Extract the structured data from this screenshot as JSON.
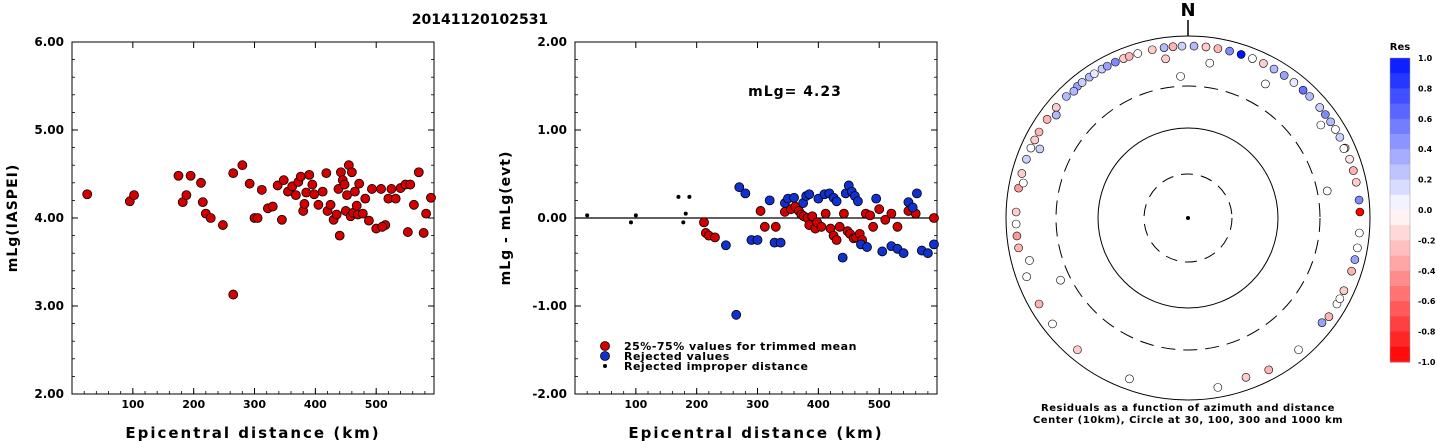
{
  "title": "20141120102531",
  "colors": {
    "trimmed": "#d40000",
    "rejected": "#1030d0",
    "improper": "#000000"
  },
  "chart_data": [
    {
      "type": "scatter",
      "xlabel": "Epicentral distance (km)",
      "ylabel": "mLg(IASPEI)",
      "xlim": [
        0,
        595
      ],
      "ylim": [
        2.0,
        6.0
      ],
      "xticks": [
        "100",
        "200",
        "300",
        "400",
        "500"
      ],
      "xtick_values": [
        100,
        200,
        300,
        400,
        500
      ],
      "yticks": [
        "2.00",
        "3.00",
        "4.00",
        "5.00",
        "6.00"
      ],
      "ytick_values": [
        2,
        3,
        4,
        5,
        6
      ],
      "series": [
        {
          "points": [
            [
              25,
              4.27
            ],
            [
              95,
              4.19
            ],
            [
              102,
              4.26
            ],
            [
              175,
              4.48
            ],
            [
              182,
              4.18
            ],
            [
              188,
              4.26
            ],
            [
              195,
              4.48
            ],
            [
              212,
              4.4
            ],
            [
              215,
              4.18
            ],
            [
              220,
              4.05
            ],
            [
              228,
              4.0
            ],
            [
              248,
              3.92
            ],
            [
              265,
              3.13
            ],
            [
              265,
              4.51
            ],
            [
              280,
              4.6
            ],
            [
              292,
              4.39
            ],
            [
              300,
              4.0
            ],
            [
              305,
              4.0
            ],
            [
              312,
              4.32
            ],
            [
              322,
              4.11
            ],
            [
              330,
              4.13
            ],
            [
              338,
              4.37
            ],
            [
              345,
              3.98
            ],
            [
              348,
              4.43
            ],
            [
              355,
              4.3
            ],
            [
              362,
              4.36
            ],
            [
              368,
              4.26
            ],
            [
              372,
              4.41
            ],
            [
              376,
              4.47
            ],
            [
              380,
              4.08
            ],
            [
              382,
              4.16
            ],
            [
              385,
              4.29
            ],
            [
              390,
              4.49
            ],
            [
              395,
              4.38
            ],
            [
              398,
              4.27
            ],
            [
              405,
              4.15
            ],
            [
              412,
              4.3
            ],
            [
              418,
              4.51
            ],
            [
              420,
              4.08
            ],
            [
              425,
              4.15
            ],
            [
              430,
              3.98
            ],
            [
              435,
              4.04
            ],
            [
              438,
              4.33
            ],
            [
              442,
              4.52
            ],
            [
              445,
              4.43
            ],
            [
              448,
              4.38
            ],
            [
              450,
              4.08
            ],
            [
              452,
              4.26
            ],
            [
              455,
              4.6
            ],
            [
              458,
              4.02
            ],
            [
              460,
              4.52
            ],
            [
              462,
              4.06
            ],
            [
              465,
              4.3
            ],
            [
              468,
              4.14
            ],
            [
              470,
              4.04
            ],
            [
              472,
              4.39
            ],
            [
              478,
              4.05
            ],
            [
              482,
              4.22
            ],
            [
              488,
              3.97
            ],
            [
              493,
              4.33
            ],
            [
              500,
              3.88
            ],
            [
              508,
              4.33
            ],
            [
              515,
              3.92
            ],
            [
              520,
              4.22
            ],
            [
              525,
              4.33
            ],
            [
              532,
              4.22
            ],
            [
              540,
              4.34
            ],
            [
              548,
              4.38
            ],
            [
              556,
              4.38
            ],
            [
              562,
              4.15
            ],
            [
              570,
              4.52
            ],
            [
              578,
              3.83
            ],
            [
              582,
              4.05
            ],
            [
              590,
              4.23
            ],
            [
              440,
              3.8
            ],
            [
              510,
              3.9
            ],
            [
              552,
              3.84
            ]
          ]
        }
      ]
    },
    {
      "type": "scatter",
      "xlabel": "Epicentral distance (km)",
      "ylabel": "mLg - mLg(evt)",
      "annotation": "mLg= 4.23",
      "xlim": [
        0,
        595
      ],
      "ylim": [
        -2.0,
        2.0
      ],
      "xticks": [
        "100",
        "200",
        "300",
        "400",
        "500"
      ],
      "xtick_values": [
        100,
        200,
        300,
        400,
        500
      ],
      "yticks": [
        "-2.00",
        "-1.00",
        "0.00",
        "1.00",
        "2.00"
      ],
      "ytick_values": [
        -2,
        -1,
        0,
        1,
        2
      ],
      "zero_line": true,
      "legend": {
        "placement": "bottom-left",
        "entries": [
          {
            "label": "25%-75% values for trimmed mean",
            "series": "trimmed"
          },
          {
            "label": "Rejected values",
            "series": "rejected"
          },
          {
            "label": "Rejected improper distance",
            "series": "improper"
          }
        ]
      },
      "series": [
        {
          "name": "25%-75% values for trimmed mean",
          "key": "trimmed",
          "points": [
            [
              212,
              -0.05
            ],
            [
              215,
              -0.17
            ],
            [
              220,
              -0.2
            ],
            [
              230,
              -0.22
            ],
            [
              305,
              0.08
            ],
            [
              312,
              -0.1
            ],
            [
              330,
              -0.1
            ],
            [
              345,
              0.07
            ],
            [
              355,
              0.1
            ],
            [
              362,
              0.13
            ],
            [
              368,
              0.08
            ],
            [
              372,
              0.04
            ],
            [
              376,
              0.02
            ],
            [
              382,
              0.0
            ],
            [
              385,
              -0.08
            ],
            [
              390,
              0.02
            ],
            [
              395,
              -0.12
            ],
            [
              398,
              -0.05
            ],
            [
              405,
              -0.1
            ],
            [
              412,
              0.05
            ],
            [
              420,
              -0.12
            ],
            [
              425,
              -0.2
            ],
            [
              430,
              -0.25
            ],
            [
              435,
              -0.1
            ],
            [
              442,
              0.05
            ],
            [
              448,
              -0.15
            ],
            [
              452,
              -0.18
            ],
            [
              458,
              -0.23
            ],
            [
              462,
              -0.22
            ],
            [
              468,
              -0.18
            ],
            [
              472,
              -0.25
            ],
            [
              478,
              0.05
            ],
            [
              485,
              0.03
            ],
            [
              490,
              -0.1
            ],
            [
              500,
              0.1
            ],
            [
              510,
              -0.02
            ],
            [
              520,
              0.05
            ],
            [
              530,
              -0.1
            ],
            [
              548,
              0.08
            ],
            [
              560,
              0.05
            ],
            [
              590,
              0.0
            ]
          ]
        },
        {
          "name": "Rejected values",
          "key": "rejected",
          "points": [
            [
              248,
              -0.31
            ],
            [
              265,
              -1.1
            ],
            [
              270,
              0.35
            ],
            [
              280,
              0.28
            ],
            [
              290,
              -0.25
            ],
            [
              300,
              -0.25
            ],
            [
              320,
              0.2
            ],
            [
              328,
              -0.28
            ],
            [
              338,
              -0.28
            ],
            [
              345,
              0.17
            ],
            [
              350,
              0.22
            ],
            [
              360,
              0.23
            ],
            [
              375,
              0.17
            ],
            [
              380,
              0.25
            ],
            [
              385,
              0.27
            ],
            [
              400,
              0.22
            ],
            [
              410,
              0.27
            ],
            [
              418,
              0.28
            ],
            [
              425,
              0.23
            ],
            [
              430,
              0.19
            ],
            [
              440,
              -0.45
            ],
            [
              445,
              0.28
            ],
            [
              450,
              0.37
            ],
            [
              455,
              0.3
            ],
            [
              460,
              0.25
            ],
            [
              465,
              0.19
            ],
            [
              470,
              -0.3
            ],
            [
              480,
              -0.33
            ],
            [
              495,
              0.22
            ],
            [
              505,
              -0.38
            ],
            [
              520,
              -0.32
            ],
            [
              530,
              -0.35
            ],
            [
              540,
              -0.4
            ],
            [
              548,
              0.18
            ],
            [
              555,
              0.12
            ],
            [
              562,
              0.28
            ],
            [
              570,
              -0.37
            ],
            [
              580,
              -0.4
            ],
            [
              590,
              -0.3
            ]
          ]
        },
        {
          "name": "Rejected improper distance",
          "key": "improper",
          "points": [
            [
              20,
              0.03
            ],
            [
              92,
              -0.05
            ],
            [
              100,
              0.03
            ],
            [
              170,
              0.24
            ],
            [
              178,
              -0.05
            ],
            [
              182,
              0.05
            ],
            [
              188,
              0.24
            ]
          ]
        }
      ]
    },
    {
      "type": "scatter",
      "subtype": "polar-residuals",
      "north_label": "N",
      "caption": [
        "Residuals as a function of azimuth and distance",
        "Center (10km), Circle at 30, 100, 300 and 1000 km"
      ],
      "rings_km": [
        30,
        100,
        300,
        1000
      ],
      "colorbar": {
        "title": "Res",
        "range": [
          -1.0,
          1.0
        ],
        "ticks": [
          "1.0",
          "0.8",
          "0.6",
          "0.4",
          "0.2",
          "0.0",
          "-0.2",
          "-0.4",
          "-0.6",
          "-0.8",
          "-1.0"
        ],
        "tick_values": [
          1.0,
          0.8,
          0.6,
          0.4,
          0.2,
          0.0,
          -0.2,
          -0.4,
          -0.6,
          -0.8,
          -1.0
        ]
      },
      "points_az_dist_res": [
        [
          -3,
          380,
          0.0
        ],
        [
          79,
          380,
          0.0
        ],
        [
          -116,
          380,
          0.0
        ],
        [
          -55,
          800,
          -0.3
        ],
        [
          -50,
          820,
          -0.2
        ],
        [
          -45,
          800,
          0.3
        ],
        [
          -40,
          790,
          0.4
        ],
        [
          -38,
          830,
          0.2
        ],
        [
          -35,
          790,
          0.3
        ],
        [
          -33,
          820,
          0.1
        ],
        [
          -30,
          850,
          0.2
        ],
        [
          -28,
          800,
          0.4
        ],
        [
          -25,
          830,
          0.5
        ],
        [
          -22,
          790,
          -0.2
        ],
        [
          -20,
          870,
          -0.3
        ],
        [
          -17,
          820,
          0.0
        ],
        [
          -12,
          850,
          -0.2
        ],
        [
          -8,
          870,
          0.3
        ],
        [
          -5,
          920,
          -0.3
        ],
        [
          -2,
          900,
          0.2
        ],
        [
          2,
          920,
          0.3
        ],
        [
          6,
          880,
          -0.2
        ],
        [
          10,
          870,
          -0.3
        ],
        [
          14,
          900,
          0.5
        ],
        [
          18,
          930,
          1.0
        ],
        [
          22,
          880,
          0.0
        ],
        [
          26,
          860,
          -0.2
        ],
        [
          30,
          870,
          0.3
        ],
        [
          34,
          840,
          0.4
        ],
        [
          38,
          810,
          0.1
        ],
        [
          42,
          790,
          0.6
        ],
        [
          45,
          810,
          0.3
        ],
        [
          50,
          830,
          0.2
        ],
        [
          53,
          850,
          0.5
        ],
        [
          56,
          830,
          0.3
        ],
        [
          59,
          810,
          0.0
        ],
        [
          62,
          850,
          0.2
        ],
        [
          66,
          830,
          -0.3
        ],
        [
          70,
          810,
          -0.1
        ],
        [
          74,
          880,
          -0.3
        ],
        [
          78,
          860,
          -0.2
        ],
        [
          84,
          910,
          0.5
        ],
        [
          88,
          870,
          -1.0
        ],
        [
          95,
          890,
          0.0
        ],
        [
          100,
          920,
          0.0
        ],
        [
          104,
          830,
          0.4
        ],
        [
          108,
          910,
          -0.3
        ],
        [
          115,
          860,
          -0.2
        ],
        [
          120,
          830,
          0.0
        ],
        [
          125,
          920,
          -0.3
        ],
        [
          140,
          860,
          0.0
        ],
        [
          152,
          870,
          -0.3
        ],
        [
          160,
          740,
          -0.2
        ],
        [
          170,
          800,
          0.0
        ],
        [
          -110,
          780,
          0.0
        ],
        [
          -100,
          840,
          -0.3
        ],
        [
          -96,
          900,
          -0.4
        ],
        [
          -92,
          860,
          0.0
        ],
        [
          -80,
          920,
          -0.4
        ],
        [
          -75,
          860,
          -0.2
        ],
        [
          -70,
          870,
          0.2
        ],
        [
          -66,
          880,
          0.0
        ],
        [
          -63,
          840,
          -0.2
        ],
        [
          -60,
          890,
          -0.3
        ],
        [
          -120,
          830,
          -0.3
        ],
        [
          -128,
          880,
          0.0
        ],
        [
          -140,
          850,
          -0.2
        ],
        [
          -160,
          770,
          0.0
        ],
        [
          8,
          540,
          0.0
        ],
        [
          -42,
          760,
          0.3
        ],
        [
          -8,
          600,
          -0.2
        ],
        [
          30,
          520,
          0.0
        ],
        [
          55,
          620,
          0.0
        ],
        [
          -65,
          640,
          0.2
        ],
        [
          118,
          800,
          0.0
        ],
        [
          -105,
          650,
          0.0
        ],
        [
          -78,
          720,
          0.0
        ],
        [
          66,
          760,
          0.0
        ],
        [
          -88,
          820,
          -0.2
        ],
        [
          128,
          750,
          0.4
        ],
        [
          -52,
          700,
          0.3
        ]
      ]
    }
  ]
}
